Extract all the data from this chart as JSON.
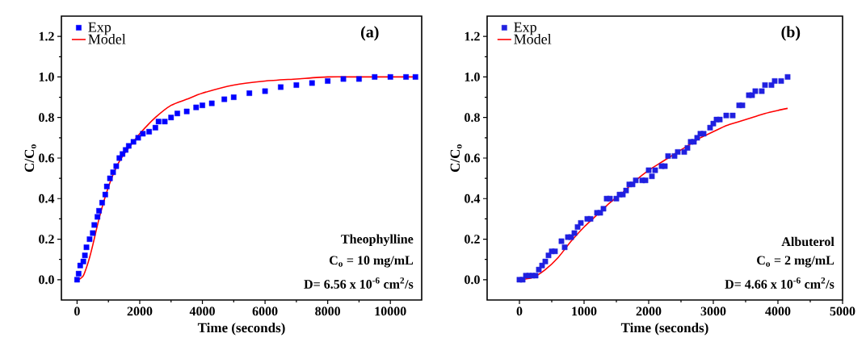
{
  "chart_data": [
    {
      "type": "line",
      "xlabel": "Time (seconds)",
      "ylabel": "C/C$_{o}$",
      "xlim": [
        -500,
        11000
      ],
      "ylim": [
        -0.1,
        1.3
      ],
      "xticks": [
        0,
        2000,
        4000,
        6000,
        8000,
        10000
      ],
      "yticks": [
        {
          "value": 0,
          "label": "0.0"
        },
        {
          "value": 0.2,
          "label": "0.2"
        },
        {
          "value": 0.4,
          "label": "0.4"
        },
        {
          "value": 0.6,
          "label": "0.6"
        },
        {
          "value": 0.8,
          "label": "0.8"
        },
        {
          "value": 1.0,
          "label": "1.0"
        },
        {
          "value": 1.2,
          "label": "1.2"
        }
      ],
      "legend": "top left",
      "grid": false,
      "annotations": [
        "(a)",
        "Theophylline",
        "C$_{o}$ = 10 mg/mL",
        "D= 6.56 x 10$^{-6}$ cm$^{2}$/s"
      ],
      "series": [
        {
          "name": "Exp",
          "type": "scatter",
          "marker": "square",
          "color": "#0000ff",
          "x": [
            0,
            50,
            100,
            200,
            250,
            300,
            400,
            500,
            550,
            650,
            700,
            800,
            900,
            950,
            1050,
            1150,
            1250,
            1350,
            1450,
            1550,
            1650,
            1800,
            1950,
            2100,
            2300,
            2500,
            2600,
            2800,
            3000,
            3200,
            3500,
            3800,
            4000,
            4300,
            4700,
            5000,
            5500,
            6000,
            6500,
            7000,
            7500,
            8000,
            8500,
            9000,
            9500,
            10000,
            10500,
            10800
          ],
          "values": [
            0,
            0.03,
            0.07,
            0.09,
            0.12,
            0.16,
            0.2,
            0.23,
            0.27,
            0.31,
            0.34,
            0.38,
            0.42,
            0.46,
            0.5,
            0.53,
            0.56,
            0.6,
            0.62,
            0.64,
            0.66,
            0.68,
            0.7,
            0.72,
            0.73,
            0.75,
            0.78,
            0.78,
            0.8,
            0.82,
            0.83,
            0.85,
            0.86,
            0.87,
            0.89,
            0.9,
            0.92,
            0.93,
            0.95,
            0.96,
            0.97,
            0.98,
            0.99,
            0.99,
            1.0,
            1.0,
            1.0,
            1.0
          ]
        },
        {
          "name": "Model",
          "marker": "none",
          "line_style": "solid",
          "color": "#ff0000",
          "x": [
            0,
            100,
            200,
            300,
            400,
            500,
            700,
            900,
            1100,
            1300,
            1500,
            1800,
            2000,
            2500,
            3000,
            3500,
            4000,
            5000,
            6000,
            7000,
            8000,
            9000,
            10000,
            10800
          ],
          "values": [
            0,
            0.005,
            0.02,
            0.06,
            0.11,
            0.17,
            0.3,
            0.41,
            0.5,
            0.57,
            0.62,
            0.68,
            0.72,
            0.8,
            0.86,
            0.89,
            0.92,
            0.96,
            0.98,
            0.99,
            1.0,
            1.0,
            1.0,
            1.0
          ]
        }
      ]
    },
    {
      "type": "line",
      "xlabel": "Time (seconds)",
      "ylabel": "C/C$_{o}$",
      "xlim": [
        -500,
        5000
      ],
      "ylim": [
        -0.1,
        1.3
      ],
      "xticks": [
        0,
        1000,
        2000,
        3000,
        4000,
        5000
      ],
      "yticks": [
        {
          "value": 0,
          "label": "0.0"
        },
        {
          "value": 0.2,
          "label": "0.2"
        },
        {
          "value": 0.4,
          "label": "0.4"
        },
        {
          "value": 0.6,
          "label": "0.6"
        },
        {
          "value": 0.8,
          "label": "0.8"
        },
        {
          "value": 1.0,
          "label": "1.0"
        },
        {
          "value": 1.2,
          "label": "1.2"
        }
      ],
      "legend": "top left",
      "grid": false,
      "annotations": [
        "(b)",
        "Albuterol",
        "C$_{o}$ = 2 mg/mL",
        "D= 4.66 x 10$^{-6}$ cm$^{2}$/s"
      ],
      "series": [
        {
          "name": "Exp",
          "type": "scatter",
          "marker": "square",
          "color": "#2020e0",
          "x": [
            0,
            50,
            100,
            150,
            200,
            250,
            300,
            350,
            400,
            450,
            500,
            550,
            650,
            700,
            750,
            800,
            850,
            900,
            950,
            1050,
            1100,
            1200,
            1250,
            1300,
            1350,
            1400,
            1500,
            1550,
            1600,
            1650,
            1700,
            1750,
            1800,
            1900,
            1950,
            2000,
            2050,
            2100,
            2200,
            2250,
            2300,
            2400,
            2450,
            2550,
            2600,
            2650,
            2700,
            2750,
            2800,
            2850,
            2950,
            3000,
            3050,
            3100,
            3200,
            3300,
            3400,
            3450,
            3550,
            3600,
            3650,
            3750,
            3800,
            3900,
            3950,
            4050,
            4150
          ],
          "values": [
            0,
            0,
            0.02,
            0.02,
            0.02,
            0.02,
            0.05,
            0.07,
            0.09,
            0.12,
            0.14,
            0.14,
            0.19,
            0.16,
            0.21,
            0.21,
            0.23,
            0.26,
            0.28,
            0.3,
            0.3,
            0.33,
            0.33,
            0.35,
            0.4,
            0.4,
            0.4,
            0.42,
            0.42,
            0.44,
            0.47,
            0.47,
            0.49,
            0.49,
            0.49,
            0.54,
            0.51,
            0.54,
            0.56,
            0.56,
            0.61,
            0.61,
            0.63,
            0.63,
            0.65,
            0.68,
            0.68,
            0.7,
            0.72,
            0.72,
            0.75,
            0.77,
            0.79,
            0.79,
            0.81,
            0.81,
            0.86,
            0.86,
            0.91,
            0.91,
            0.93,
            0.93,
            0.96,
            0.96,
            0.98,
            0.98,
            1.0
          ]
        },
        {
          "name": "Model",
          "marker": "none",
          "line_style": "solid",
          "color": "#ff0000",
          "x": [
            0,
            200,
            400,
            600,
            800,
            1000,
            1200,
            1400,
            1600,
            1800,
            2000,
            2200,
            2400,
            2600,
            2800,
            3000,
            3200,
            3400,
            3600,
            3800,
            4000,
            4150
          ],
          "values": [
            0,
            0.01,
            0.05,
            0.11,
            0.19,
            0.26,
            0.32,
            0.38,
            0.43,
            0.49,
            0.54,
            0.58,
            0.62,
            0.66,
            0.7,
            0.73,
            0.76,
            0.78,
            0.8,
            0.82,
            0.835,
            0.845
          ]
        }
      ]
    }
  ]
}
